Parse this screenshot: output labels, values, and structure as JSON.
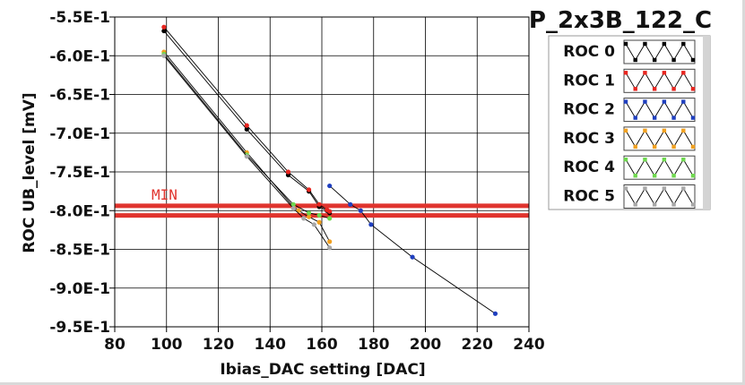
{
  "chart_data": {
    "type": "scatter",
    "title": "P_2x3B_122_C",
    "xlabel": "Ibias_DAC setting [DAC]",
    "ylabel": "ROC UB_level [mV]",
    "xlim": [
      80,
      240
    ],
    "ylim": [
      -0.95,
      -0.55
    ],
    "x_ticks": [
      80,
      100,
      120,
      140,
      160,
      180,
      200,
      220,
      240
    ],
    "x_tick_labels": [
      "80",
      "100",
      "120",
      "140",
      "160",
      "180",
      "200",
      "220",
      "240"
    ],
    "y_ticks": [
      -0.55,
      -0.6,
      -0.65,
      -0.7,
      -0.75,
      -0.8,
      -0.85,
      -0.9,
      -0.95
    ],
    "y_tick_labels": [
      "-5.5E-1",
      "-6.0E-1",
      "-6.5E-1",
      "-7.0E-1",
      "-7.5E-1",
      "-8.0E-1",
      "-8.5E-1",
      "-9.0E-1",
      "-9.5E-1"
    ],
    "grid": true,
    "legend_placement": "right",
    "threshold": {
      "label": "MIN",
      "band": [
        -0.805,
        -0.795
      ],
      "color": "#e0342e"
    },
    "series": [
      {
        "name": "ROC 0",
        "color": "#000000",
        "x": [
          99,
          131,
          147,
          155,
          159,
          162,
          163
        ],
        "y": [
          -0.568,
          -0.695,
          -0.754,
          -0.775,
          -0.795,
          -0.8,
          -0.803
        ]
      },
      {
        "name": "ROC 1",
        "color": "#e8251f",
        "x": [
          99,
          131,
          147,
          155,
          159,
          162,
          163
        ],
        "y": [
          -0.563,
          -0.69,
          -0.75,
          -0.773,
          -0.792,
          -0.799,
          -0.801
        ]
      },
      {
        "name": "ROC 2",
        "color": "#1f3fbf",
        "x": [
          163,
          171,
          175,
          179,
          195,
          227
        ],
        "y": [
          -0.768,
          -0.792,
          -0.8,
          -0.818,
          -0.86,
          -0.933
        ]
      },
      {
        "name": "ROC 3",
        "color": "#f0a020",
        "x": [
          99,
          131,
          149,
          151,
          155,
          159,
          163
        ],
        "y": [
          -0.595,
          -0.725,
          -0.795,
          -0.8,
          -0.808,
          -0.815,
          -0.84
        ]
      },
      {
        "name": "ROC 4",
        "color": "#6fd84f",
        "x": [
          99,
          131,
          149,
          155,
          159,
          163
        ],
        "y": [
          -0.598,
          -0.728,
          -0.792,
          -0.803,
          -0.806,
          -0.81
        ]
      },
      {
        "name": "ROC 5",
        "color": "#a8a8a8",
        "x": [
          99,
          131,
          149,
          153,
          157,
          163
        ],
        "y": [
          -0.6,
          -0.73,
          -0.797,
          -0.81,
          -0.818,
          -0.848
        ]
      }
    ]
  }
}
